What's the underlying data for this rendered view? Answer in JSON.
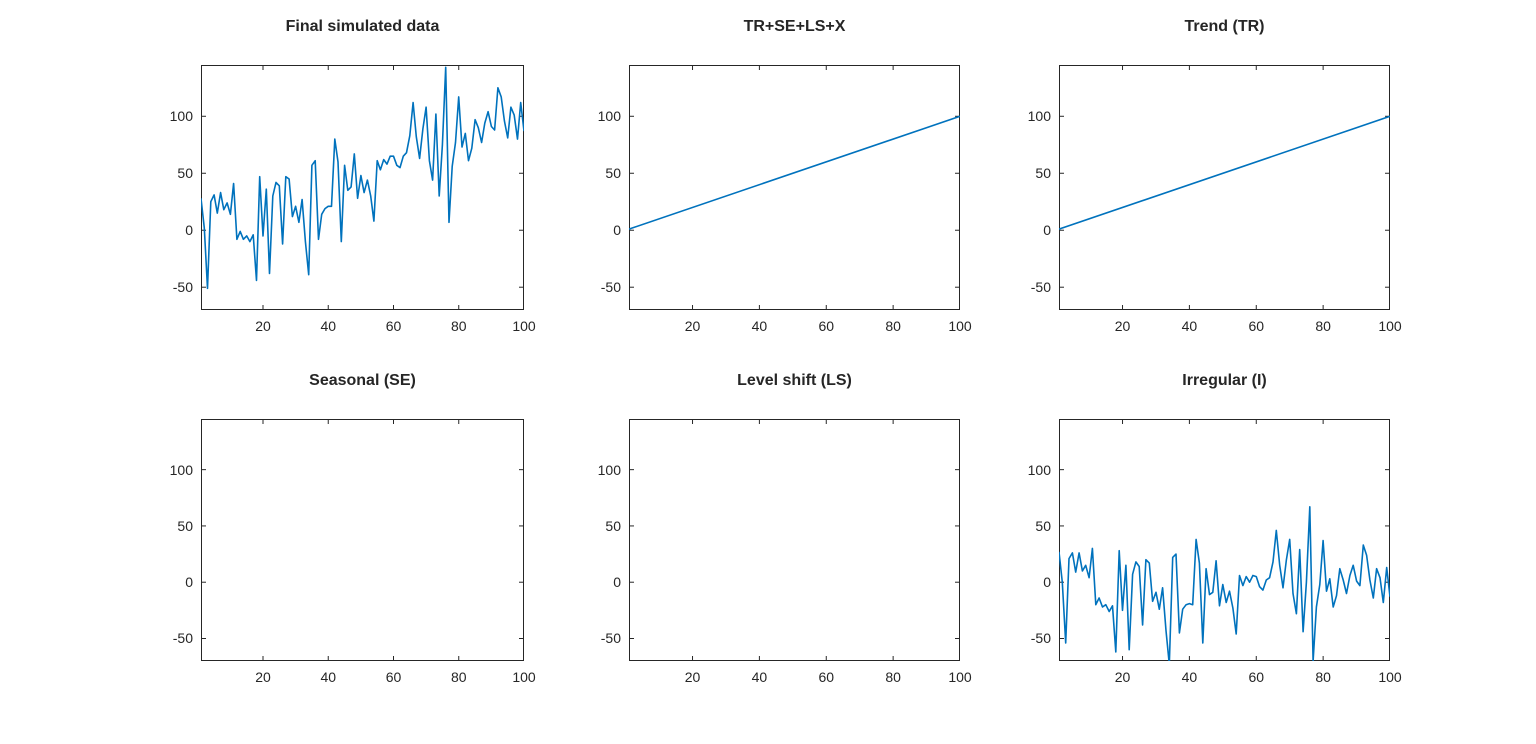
{
  "figure": {
    "background": "#ffffff",
    "axes_color": "#262626",
    "line_color": "#0072BD",
    "grid": false,
    "legend": null
  },
  "chart_data": [
    {
      "type": "line",
      "title": "Final simulated data",
      "xlabel": "",
      "ylabel": "",
      "xlim": [
        1,
        100
      ],
      "ylim": [
        -70,
        145
      ],
      "xticks": [
        20,
        40,
        60,
        80,
        100
      ],
      "yticks": [
        -50,
        0,
        50,
        100
      ],
      "x_start": 1,
      "x_step": 1,
      "values": [
        28,
        2,
        -51,
        25,
        31,
        15,
        33,
        18,
        24,
        14,
        41,
        -8,
        -1,
        -8,
        -5,
        -10,
        -4,
        -44,
        47,
        -5,
        36,
        -38,
        30,
        42,
        39,
        -12,
        47,
        45,
        12,
        21,
        7,
        27,
        -10,
        -39,
        57,
        61,
        -8,
        14,
        19,
        21,
        21,
        80,
        60,
        -10,
        57,
        35,
        38,
        67,
        28,
        48,
        33,
        44,
        30,
        8,
        61,
        53,
        62,
        58,
        65,
        65,
        57,
        55,
        65,
        68,
        83,
        112,
        82,
        63,
        89,
        108,
        61,
        44,
        102,
        30,
        75,
        143,
        7,
        56,
        77,
        117,
        73,
        85,
        61,
        72,
        97,
        90,
        77,
        94,
        104,
        91,
        88,
        125,
        117,
        96,
        81,
        108,
        101,
        80,
        112,
        87
      ]
    },
    {
      "type": "line",
      "title": "TR+SE+LS+X",
      "xlabel": "",
      "ylabel": "",
      "xlim": [
        1,
        100
      ],
      "ylim": [
        -70,
        145
      ],
      "xticks": [
        20,
        40,
        60,
        80,
        100
      ],
      "yticks": [
        -50,
        0,
        50,
        100
      ],
      "points": [
        [
          1,
          1
        ],
        [
          100,
          100
        ]
      ]
    },
    {
      "type": "line",
      "title": "Trend (TR)",
      "xlabel": "",
      "ylabel": "",
      "xlim": [
        1,
        100
      ],
      "ylim": [
        -70,
        145
      ],
      "xticks": [
        20,
        40,
        60,
        80,
        100
      ],
      "yticks": [
        -50,
        0,
        50,
        100
      ],
      "points": [
        [
          1,
          1
        ],
        [
          100,
          100
        ]
      ]
    },
    {
      "type": "line",
      "title": "Seasonal (SE)",
      "xlabel": "",
      "ylabel": "",
      "xlim": [
        1,
        100
      ],
      "ylim": [
        -70,
        145
      ],
      "xticks": [
        20,
        40,
        60,
        80,
        100
      ],
      "yticks": [
        -50,
        0,
        50,
        100
      ],
      "values": []
    },
    {
      "type": "line",
      "title": "Level shift (LS)",
      "xlabel": "",
      "ylabel": "",
      "xlim": [
        1,
        100
      ],
      "ylim": [
        -70,
        145
      ],
      "xticks": [
        20,
        40,
        60,
        80,
        100
      ],
      "yticks": [
        -50,
        0,
        50,
        100
      ],
      "values": []
    },
    {
      "type": "line",
      "title": "Irregular (I)",
      "xlabel": "",
      "ylabel": "",
      "xlim": [
        1,
        100
      ],
      "ylim": [
        -70,
        145
      ],
      "xticks": [
        20,
        40,
        60,
        80,
        100
      ],
      "yticks": [
        -50,
        0,
        50,
        100
      ],
      "x_start": 1,
      "x_step": 1,
      "values": [
        27,
        0,
        -54,
        21,
        26,
        9,
        26,
        10,
        15,
        4,
        30,
        -20,
        -14,
        -22,
        -20,
        -26,
        -21,
        -62,
        28,
        -25,
        15,
        -60,
        7,
        18,
        14,
        -38,
        20,
        17,
        -17,
        -9,
        -24,
        -5,
        -43,
        -73,
        22,
        25,
        -45,
        -24,
        -20,
        -19,
        -20,
        38,
        17,
        -54,
        12,
        -11,
        -9,
        19,
        -21,
        -2,
        -18,
        -8,
        -23,
        -46,
        6,
        -3,
        5,
        0,
        6,
        5,
        -4,
        -7,
        2,
        4,
        18,
        46,
        15,
        -5,
        20,
        38,
        -10,
        -28,
        29,
        -44,
        0,
        67,
        -70,
        -22,
        -2,
        37,
        -8,
        3,
        -22,
        -12,
        12,
        2,
        -10,
        6,
        15,
        1,
        -3,
        33,
        24,
        2,
        -14,
        12,
        4,
        -18,
        13,
        -13
      ]
    }
  ]
}
